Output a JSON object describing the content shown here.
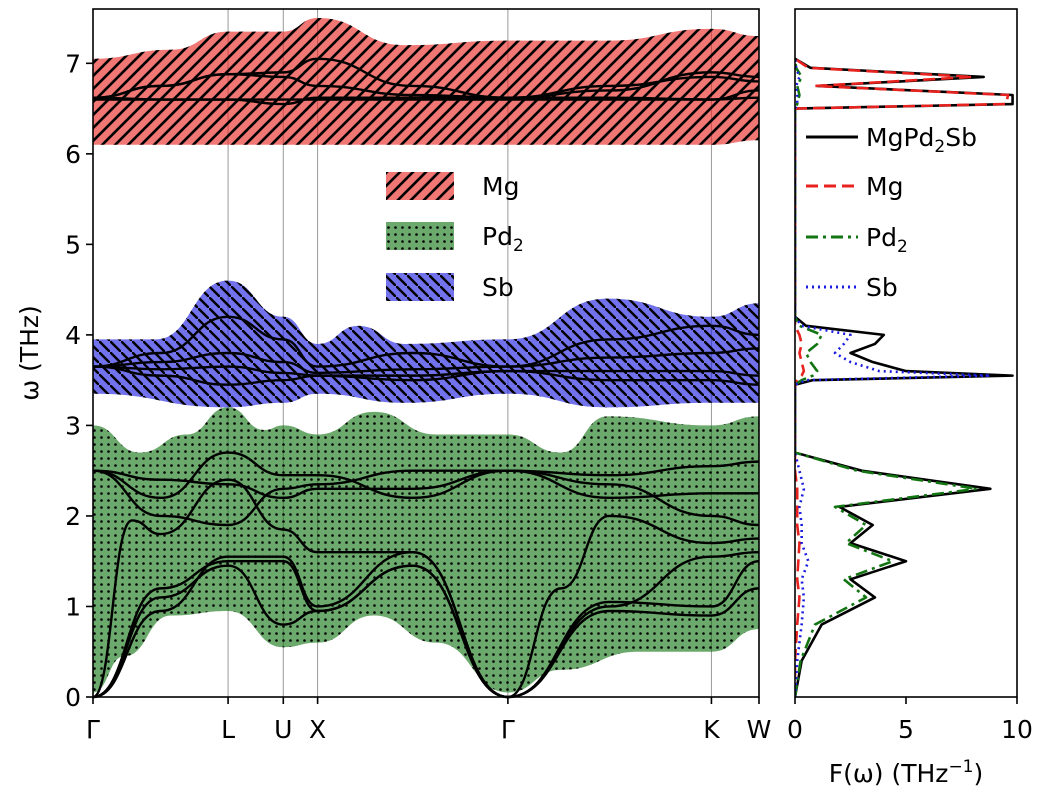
{
  "chart_data": [
    {
      "type": "area",
      "title": "",
      "xlabel": "",
      "ylabel": "ω (THz)",
      "ylim": [
        0,
        7.6
      ],
      "grid": "vertical lines at high-symmetry points",
      "legend_position": "center",
      "x_ticks": [
        {
          "label": "Γ",
          "pos": 0
        },
        {
          "label": "L",
          "pos": 0.866
        },
        {
          "label": "U",
          "pos": 1.22
        },
        {
          "label": "X",
          "pos": 1.44
        },
        {
          "label": "Γ",
          "pos": 2.66
        },
        {
          "label": "K",
          "pos": 3.965
        },
        {
          "label": "W",
          "pos": 4.27
        }
      ],
      "y_ticks": [
        0,
        1,
        2,
        3,
        4,
        5,
        6,
        7
      ],
      "legend": [
        {
          "name": "Mg",
          "sub": "",
          "color": "#e8231f",
          "hatch": "diagonal"
        },
        {
          "name": "Pd",
          "sub": "2",
          "color": "#127512",
          "hatch": "dots"
        },
        {
          "name": "Sb",
          "sub": "",
          "color": "#1c1ce0",
          "hatch": "diagonal"
        }
      ],
      "bands": [
        {
          "species": "Mg",
          "color": "#e8231f",
          "upper": [
            [
              0,
              7.05
            ],
            [
              0.5,
              7.15
            ],
            [
              0.866,
              7.35
            ],
            [
              1.22,
              7.35
            ],
            [
              1.44,
              7.5
            ],
            [
              2.0,
              7.2
            ],
            [
              2.66,
              7.25
            ],
            [
              3.3,
              7.25
            ],
            [
              3.965,
              7.38
            ],
            [
              4.27,
              7.3
            ]
          ],
          "lower": [
            [
              0,
              6.1
            ],
            [
              0.866,
              6.1
            ],
            [
              1.44,
              6.1
            ],
            [
              2.66,
              6.1
            ],
            [
              3.965,
              6.1
            ],
            [
              4.27,
              6.15
            ]
          ]
        },
        {
          "species": "Sb",
          "color": "#1c1ce0",
          "upper": [
            [
              0,
              3.95
            ],
            [
              0.4,
              3.95
            ],
            [
              0.866,
              4.6
            ],
            [
              1.22,
              4.2
            ],
            [
              1.44,
              3.9
            ],
            [
              1.7,
              4.1
            ],
            [
              2.0,
              3.9
            ],
            [
              2.66,
              3.95
            ],
            [
              3.3,
              4.4
            ],
            [
              3.965,
              4.2
            ],
            [
              4.27,
              4.35
            ]
          ],
          "lower": [
            [
              0,
              3.35
            ],
            [
              0.866,
              3.2
            ],
            [
              1.22,
              3.25
            ],
            [
              1.44,
              3.35
            ],
            [
              2.0,
              3.25
            ],
            [
              2.66,
              3.35
            ],
            [
              3.3,
              3.2
            ],
            [
              3.965,
              3.25
            ],
            [
              4.27,
              3.25
            ]
          ]
        },
        {
          "species": "Pd",
          "color": "#127512",
          "upper": [
            [
              0,
              3.0
            ],
            [
              0.3,
              2.7
            ],
            [
              0.6,
              2.9
            ],
            [
              0.866,
              3.2
            ],
            [
              1.1,
              2.95
            ],
            [
              1.22,
              3.0
            ],
            [
              1.44,
              2.9
            ],
            [
              1.8,
              3.15
            ],
            [
              2.2,
              2.9
            ],
            [
              2.66,
              2.9
            ],
            [
              3.0,
              2.7
            ],
            [
              3.3,
              3.1
            ],
            [
              3.965,
              3.0
            ],
            [
              4.27,
              3.1
            ]
          ],
          "lower": [
            [
              0,
              0.05
            ],
            [
              0.2,
              0.45
            ],
            [
              0.5,
              0.9
            ],
            [
              0.866,
              0.95
            ],
            [
              1.22,
              0.55
            ],
            [
              1.44,
              0.6
            ],
            [
              1.8,
              0.9
            ],
            [
              2.2,
              0.6
            ],
            [
              2.66,
              0.05
            ],
            [
              3.0,
              0.3
            ],
            [
              3.5,
              0.5
            ],
            [
              3.965,
              0.5
            ],
            [
              4.27,
              0.75
            ]
          ]
        }
      ],
      "series": [
        {
          "name": "",
          "color": "#000000",
          "x": [
            0,
            0.433,
            0.866,
            1.22,
            1.44,
            2.05,
            2.66,
            3.31,
            3.965,
            4.27
          ],
          "y": [
            6.6,
            6.6,
            6.6,
            6.6,
            6.6,
            6.6,
            6.6,
            6.6,
            6.6,
            6.62
          ]
        },
        {
          "name": "",
          "color": "#000000",
          "x": [
            0,
            0.433,
            0.866,
            1.22,
            1.44,
            2.05,
            2.66,
            3.31,
            3.965,
            4.27
          ],
          "y": [
            6.62,
            6.75,
            6.88,
            6.85,
            6.75,
            6.65,
            6.62,
            6.75,
            6.85,
            6.8
          ]
        },
        {
          "name": "",
          "color": "#000000",
          "x": [
            0,
            0.433,
            0.866,
            1.22,
            1.44,
            2.05,
            2.66,
            3.31,
            3.965,
            4.27
          ],
          "y": [
            6.62,
            6.6,
            6.6,
            6.55,
            6.62,
            6.62,
            6.62,
            6.62,
            6.6,
            6.7
          ]
        },
        {
          "name": "",
          "color": "#000000",
          "x": [
            0,
            0.433,
            0.866,
            1.22,
            1.44,
            2.05,
            2.66,
            3.31,
            3.965,
            4.27
          ],
          "y": [
            6.62,
            6.75,
            6.88,
            6.9,
            7.05,
            6.75,
            6.62,
            6.7,
            6.9,
            6.85
          ]
        },
        {
          "name": "",
          "color": "#000000",
          "x": [
            0,
            0.433,
            0.866,
            1.22,
            1.44,
            2.05,
            2.66,
            3.31,
            3.965,
            4.27
          ],
          "y": [
            3.65,
            3.62,
            3.65,
            3.58,
            3.55,
            3.55,
            3.6,
            3.6,
            3.6,
            3.55
          ]
        },
        {
          "name": "",
          "color": "#000000",
          "x": [
            0,
            0.433,
            0.866,
            1.22,
            1.44,
            2.05,
            2.66,
            3.31,
            3.965,
            4.27
          ],
          "y": [
            3.65,
            3.7,
            3.8,
            3.7,
            3.58,
            3.62,
            3.65,
            3.75,
            3.8,
            3.85
          ]
        },
        {
          "name": "",
          "color": "#000000",
          "x": [
            0,
            0.433,
            0.866,
            1.22,
            1.44,
            2.05,
            2.66,
            3.31,
            3.965,
            4.27
          ],
          "y": [
            3.65,
            3.8,
            4.2,
            3.95,
            3.65,
            3.8,
            3.65,
            3.95,
            4.1,
            4.0
          ]
        },
        {
          "name": "",
          "color": "#000000",
          "x": [
            0,
            0.433,
            0.866,
            1.22,
            1.44,
            2.05,
            2.66,
            3.31,
            3.965,
            4.27
          ],
          "y": [
            3.65,
            3.55,
            3.45,
            3.5,
            3.55,
            3.5,
            3.6,
            3.5,
            3.5,
            3.45
          ]
        },
        {
          "name": "",
          "color": "#000000",
          "x": [
            0,
            0.433,
            0.866,
            1.22,
            1.44,
            2.05,
            2.66,
            3.31,
            3.965,
            4.27
          ],
          "y": [
            2.5,
            2.2,
            2.7,
            2.45,
            2.45,
            2.2,
            2.5,
            2.45,
            2.55,
            2.6
          ]
        },
        {
          "name": "",
          "color": "#000000",
          "x": [
            0,
            0.433,
            0.866,
            1.22,
            1.44,
            2.05,
            2.66,
            3.31,
            3.965,
            4.27
          ],
          "y": [
            2.5,
            2.0,
            1.9,
            2.3,
            2.35,
            2.5,
            2.5,
            2.2,
            2.25,
            2.25
          ]
        },
        {
          "name": "",
          "color": "#000000",
          "x": [
            0,
            0.433,
            0.866,
            1.22,
            1.44,
            2.05,
            2.66,
            3.31,
            3.965,
            4.27
          ],
          "y": [
            2.5,
            2.4,
            2.35,
            2.2,
            2.3,
            2.3,
            2.5,
            2.35,
            2.0,
            1.9
          ]
        },
        {
          "name": "",
          "color": "#000000",
          "x": [
            0,
            0.25,
            0.433,
            0.866,
            1.22,
            1.44,
            2.05,
            2.66,
            3.0,
            3.31,
            3.965,
            4.27
          ],
          "y": [
            0,
            1.95,
            1.8,
            2.4,
            1.85,
            1.6,
            1.6,
            0,
            1.2,
            2.0,
            1.7,
            1.75
          ]
        },
        {
          "name": "",
          "color": "#000000",
          "x": [
            0,
            0.433,
            0.866,
            1.22,
            1.44,
            2.05,
            2.66,
            3.31,
            3.965,
            4.27
          ],
          "y": [
            0,
            1.2,
            1.5,
            1.5,
            0.95,
            1.45,
            0,
            1.0,
            1.55,
            1.6
          ]
        },
        {
          "name": "",
          "color": "#000000",
          "x": [
            0,
            0.433,
            0.866,
            1.22,
            1.44,
            2.05,
            2.66,
            3.31,
            3.965,
            4.27
          ],
          "y": [
            0,
            1.1,
            1.45,
            0.8,
            0.95,
            1.45,
            0,
            0.95,
            0.9,
            1.2
          ]
        },
        {
          "name": "",
          "color": "#000000",
          "x": [
            0,
            0.433,
            0.866,
            1.22,
            1.44,
            2.05,
            2.66,
            3.31,
            3.965,
            4.27
          ],
          "y": [
            0,
            0.95,
            1.55,
            1.55,
            1.0,
            1.6,
            0,
            1.05,
            1.0,
            1.5
          ]
        }
      ]
    },
    {
      "type": "line",
      "title": "",
      "xlabel": "F(ω) (THz⁻¹)",
      "ylabel": "",
      "xlim": [
        0,
        10
      ],
      "ylim": [
        0,
        7.6
      ],
      "x_ticks": [
        0,
        5,
        10
      ],
      "legend_position": "right",
      "series": [
        {
          "name": "MgPd",
          "sub": "2",
          "suffix": "Sb",
          "color": "#000000",
          "dash": "",
          "y": [
            0,
            0.4,
            0.8,
            1.1,
            1.3,
            1.5,
            1.7,
            1.9,
            2.1,
            2.3,
            2.5,
            2.7,
            3.3,
            3.45,
            3.5,
            3.55,
            3.6,
            3.7,
            3.8,
            3.9,
            4.0,
            4.1,
            4.2,
            6.1,
            6.5,
            6.55,
            6.65,
            6.75,
            6.85,
            6.95,
            7.05
          ],
          "x": [
            0,
            0.3,
            1.2,
            3.6,
            2.5,
            5.0,
            2.5,
            3.5,
            2.0,
            8.8,
            3.0,
            0,
            0,
            0,
            0.8,
            9.8,
            5.0,
            3.5,
            2.5,
            3.6,
            4.0,
            0.5,
            0,
            0,
            0,
            9.8,
            9.8,
            1.0,
            8.5,
            0.7,
            0
          ]
        },
        {
          "name": "Mg",
          "sub": "",
          "suffix": "",
          "color": "#e8231f",
          "dash": "12,6",
          "y": [
            0,
            0.4,
            0.8,
            1.1,
            1.3,
            1.5,
            1.7,
            1.9,
            2.1,
            2.3,
            2.5,
            2.7,
            3.3,
            3.45,
            3.5,
            3.55,
            3.6,
            3.7,
            3.8,
            3.9,
            4.0,
            4.1,
            4.2,
            6.1,
            6.5,
            6.55,
            6.65,
            6.75,
            6.85,
            6.95,
            7.05
          ],
          "x": [
            0,
            0,
            0.1,
            0.2,
            0.1,
            0.15,
            0.2,
            0.1,
            0.1,
            0.1,
            0,
            0,
            0,
            0,
            0.1,
            0.3,
            0.4,
            0.3,
            0.2,
            0.3,
            0.2,
            0,
            0,
            0,
            0,
            9.5,
            9.6,
            0.9,
            8.0,
            0.6,
            0
          ]
        },
        {
          "name": "Pd",
          "sub": "2",
          "suffix": "",
          "color": "#127512",
          "dash": "12,5,3,5",
          "y": [
            0,
            0.4,
            0.8,
            1.1,
            1.3,
            1.5,
            1.7,
            1.9,
            2.1,
            2.3,
            2.5,
            2.7,
            3.3,
            3.45,
            3.5,
            3.55,
            3.6,
            3.7,
            3.8,
            3.9,
            4.0,
            4.1,
            4.2,
            6.1,
            6.5,
            6.55,
            6.65,
            6.75,
            6.85,
            6.95,
            7.05
          ],
          "x": [
            0,
            0.25,
            0.9,
            3.2,
            2.2,
            4.4,
            2.3,
            3.2,
            1.8,
            8.2,
            2.8,
            0,
            0,
            0,
            0.3,
            0.8,
            1.0,
            0.7,
            0.5,
            1.0,
            1.2,
            0.2,
            0,
            0,
            0,
            0.1,
            0.2,
            0.1,
            0.3,
            0.05,
            0
          ]
        },
        {
          "name": "Sb",
          "sub": "",
          "suffix": "",
          "color": "#1c1ce0",
          "dash": "2,4",
          "y": [
            0,
            0.4,
            0.8,
            1.1,
            1.3,
            1.5,
            1.7,
            1.9,
            2.1,
            2.3,
            2.5,
            2.7,
            3.3,
            3.45,
            3.5,
            3.55,
            3.6,
            3.7,
            3.8,
            3.9,
            4.0,
            4.1,
            4.2,
            6.1,
            6.5,
            6.55,
            6.65,
            6.75,
            6.85,
            6.95,
            7.05
          ],
          "x": [
            0,
            0.1,
            0.3,
            0.4,
            0.3,
            0.6,
            0.3,
            0.3,
            0.2,
            0.4,
            0.2,
            0,
            0,
            0,
            0.5,
            8.8,
            3.8,
            2.5,
            1.8,
            2.2,
            2.5,
            0.3,
            0,
            0,
            0,
            0.1,
            0.1,
            0.05,
            0.2,
            0.05,
            0
          ]
        }
      ]
    }
  ]
}
